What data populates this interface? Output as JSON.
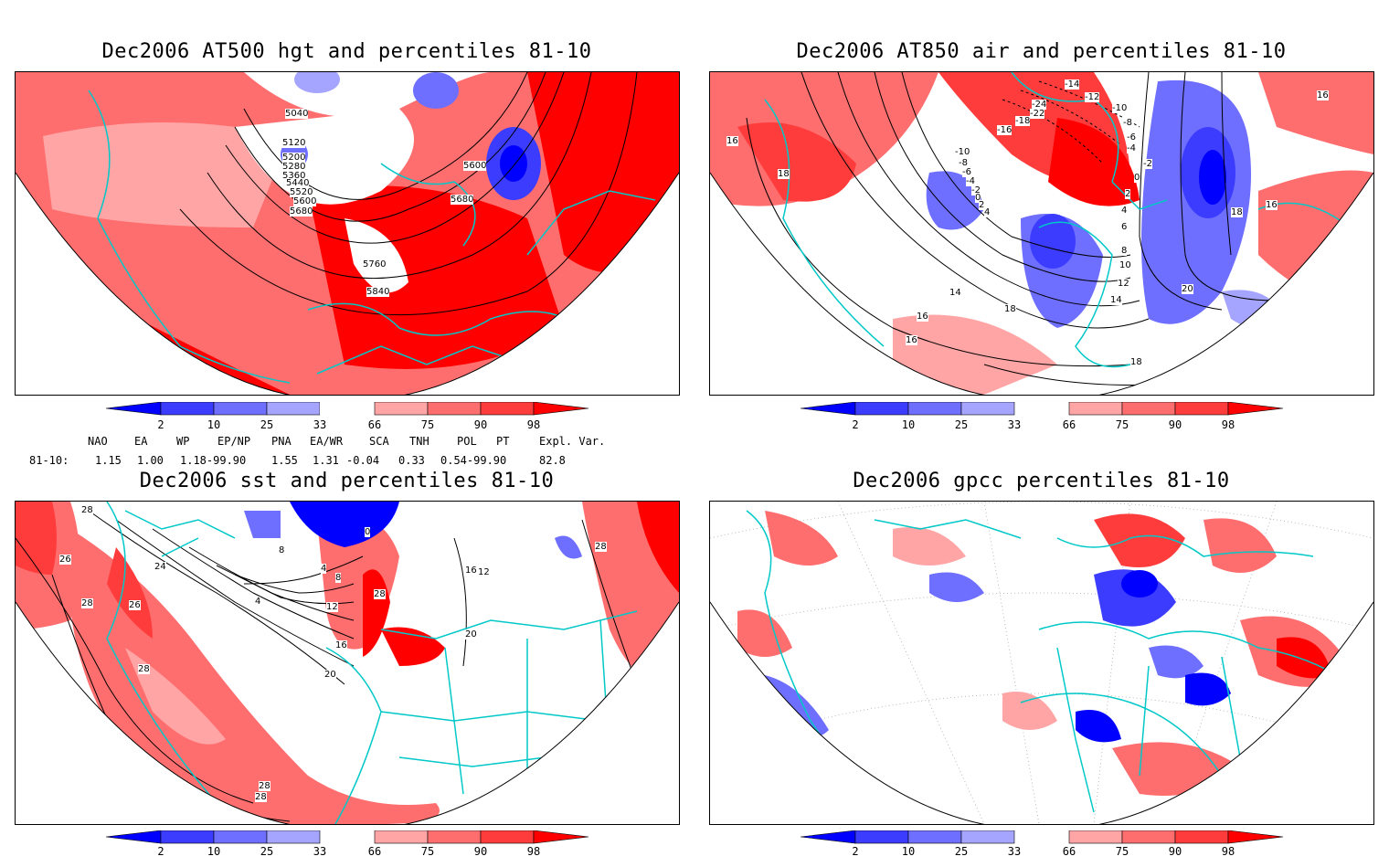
{
  "panels": {
    "top_left": {
      "title": "Dec2006 AT500 hgt and percentiles 81-10",
      "contour_labels": [
        "5040",
        "5120",
        "5200",
        "5280",
        "5360",
        "5440",
        "5520",
        "5600",
        "5680",
        "5600",
        "5680",
        "5760",
        "5840"
      ]
    },
    "top_right": {
      "title": "Dec2006 AT850 air and percentiles 81-10",
      "contour_labels": [
        "-14",
        "-12",
        "-10",
        "-8",
        "-6",
        "-4",
        "-2",
        "0",
        "2",
        "4",
        "6",
        "8",
        "10",
        "12",
        "14",
        "16",
        "16",
        "16",
        "18",
        "18",
        "18",
        "20",
        "-24",
        "-22",
        "-18",
        "-16",
        "-10",
        "-8",
        "-6",
        "-4",
        "-2",
        "0",
        "2",
        "4",
        "14",
        "16",
        "16",
        "18"
      ]
    },
    "bottom_left": {
      "title": "Dec2006 sst and percentiles 81-10",
      "contour_labels": [
        "28",
        "26",
        "24",
        "28",
        "26",
        "28",
        "0",
        "4",
        "8",
        "4",
        "8",
        "12",
        "16",
        "20",
        "20",
        "28",
        "28",
        "28",
        "16",
        "12",
        "28"
      ]
    },
    "bottom_right": {
      "title": "Dec2006 gpcc percentiles 81-10",
      "contour_labels": []
    }
  },
  "colorbar": {
    "labels": [
      "2",
      "10",
      "25",
      "33",
      "66",
      "75",
      "90",
      "98"
    ],
    "colors": [
      "#0000ff",
      "#3c3cff",
      "#6e6eff",
      "#a5a5ff",
      "#ffffff",
      "#ffa5a5",
      "#ff6e6e",
      "#ff3c3c",
      "#ff0000"
    ]
  },
  "indices": {
    "header": [
      "NAO",
      "EA",
      "WP",
      "EP/NP",
      "PNA",
      "EA/WR",
      "SCA",
      "TNH",
      "POL",
      "PT",
      "Expl. Var."
    ],
    "row_label": "81-10:",
    "values": [
      "1.15",
      "1.00",
      "1.18-99.90",
      "1.55",
      "1.31",
      "-0.04",
      "0.33",
      "0.54-99.90",
      "82.8"
    ]
  },
  "colors": {
    "coastline": "#00c8c8",
    "high": "#ff0000",
    "low": "#0000ff"
  }
}
